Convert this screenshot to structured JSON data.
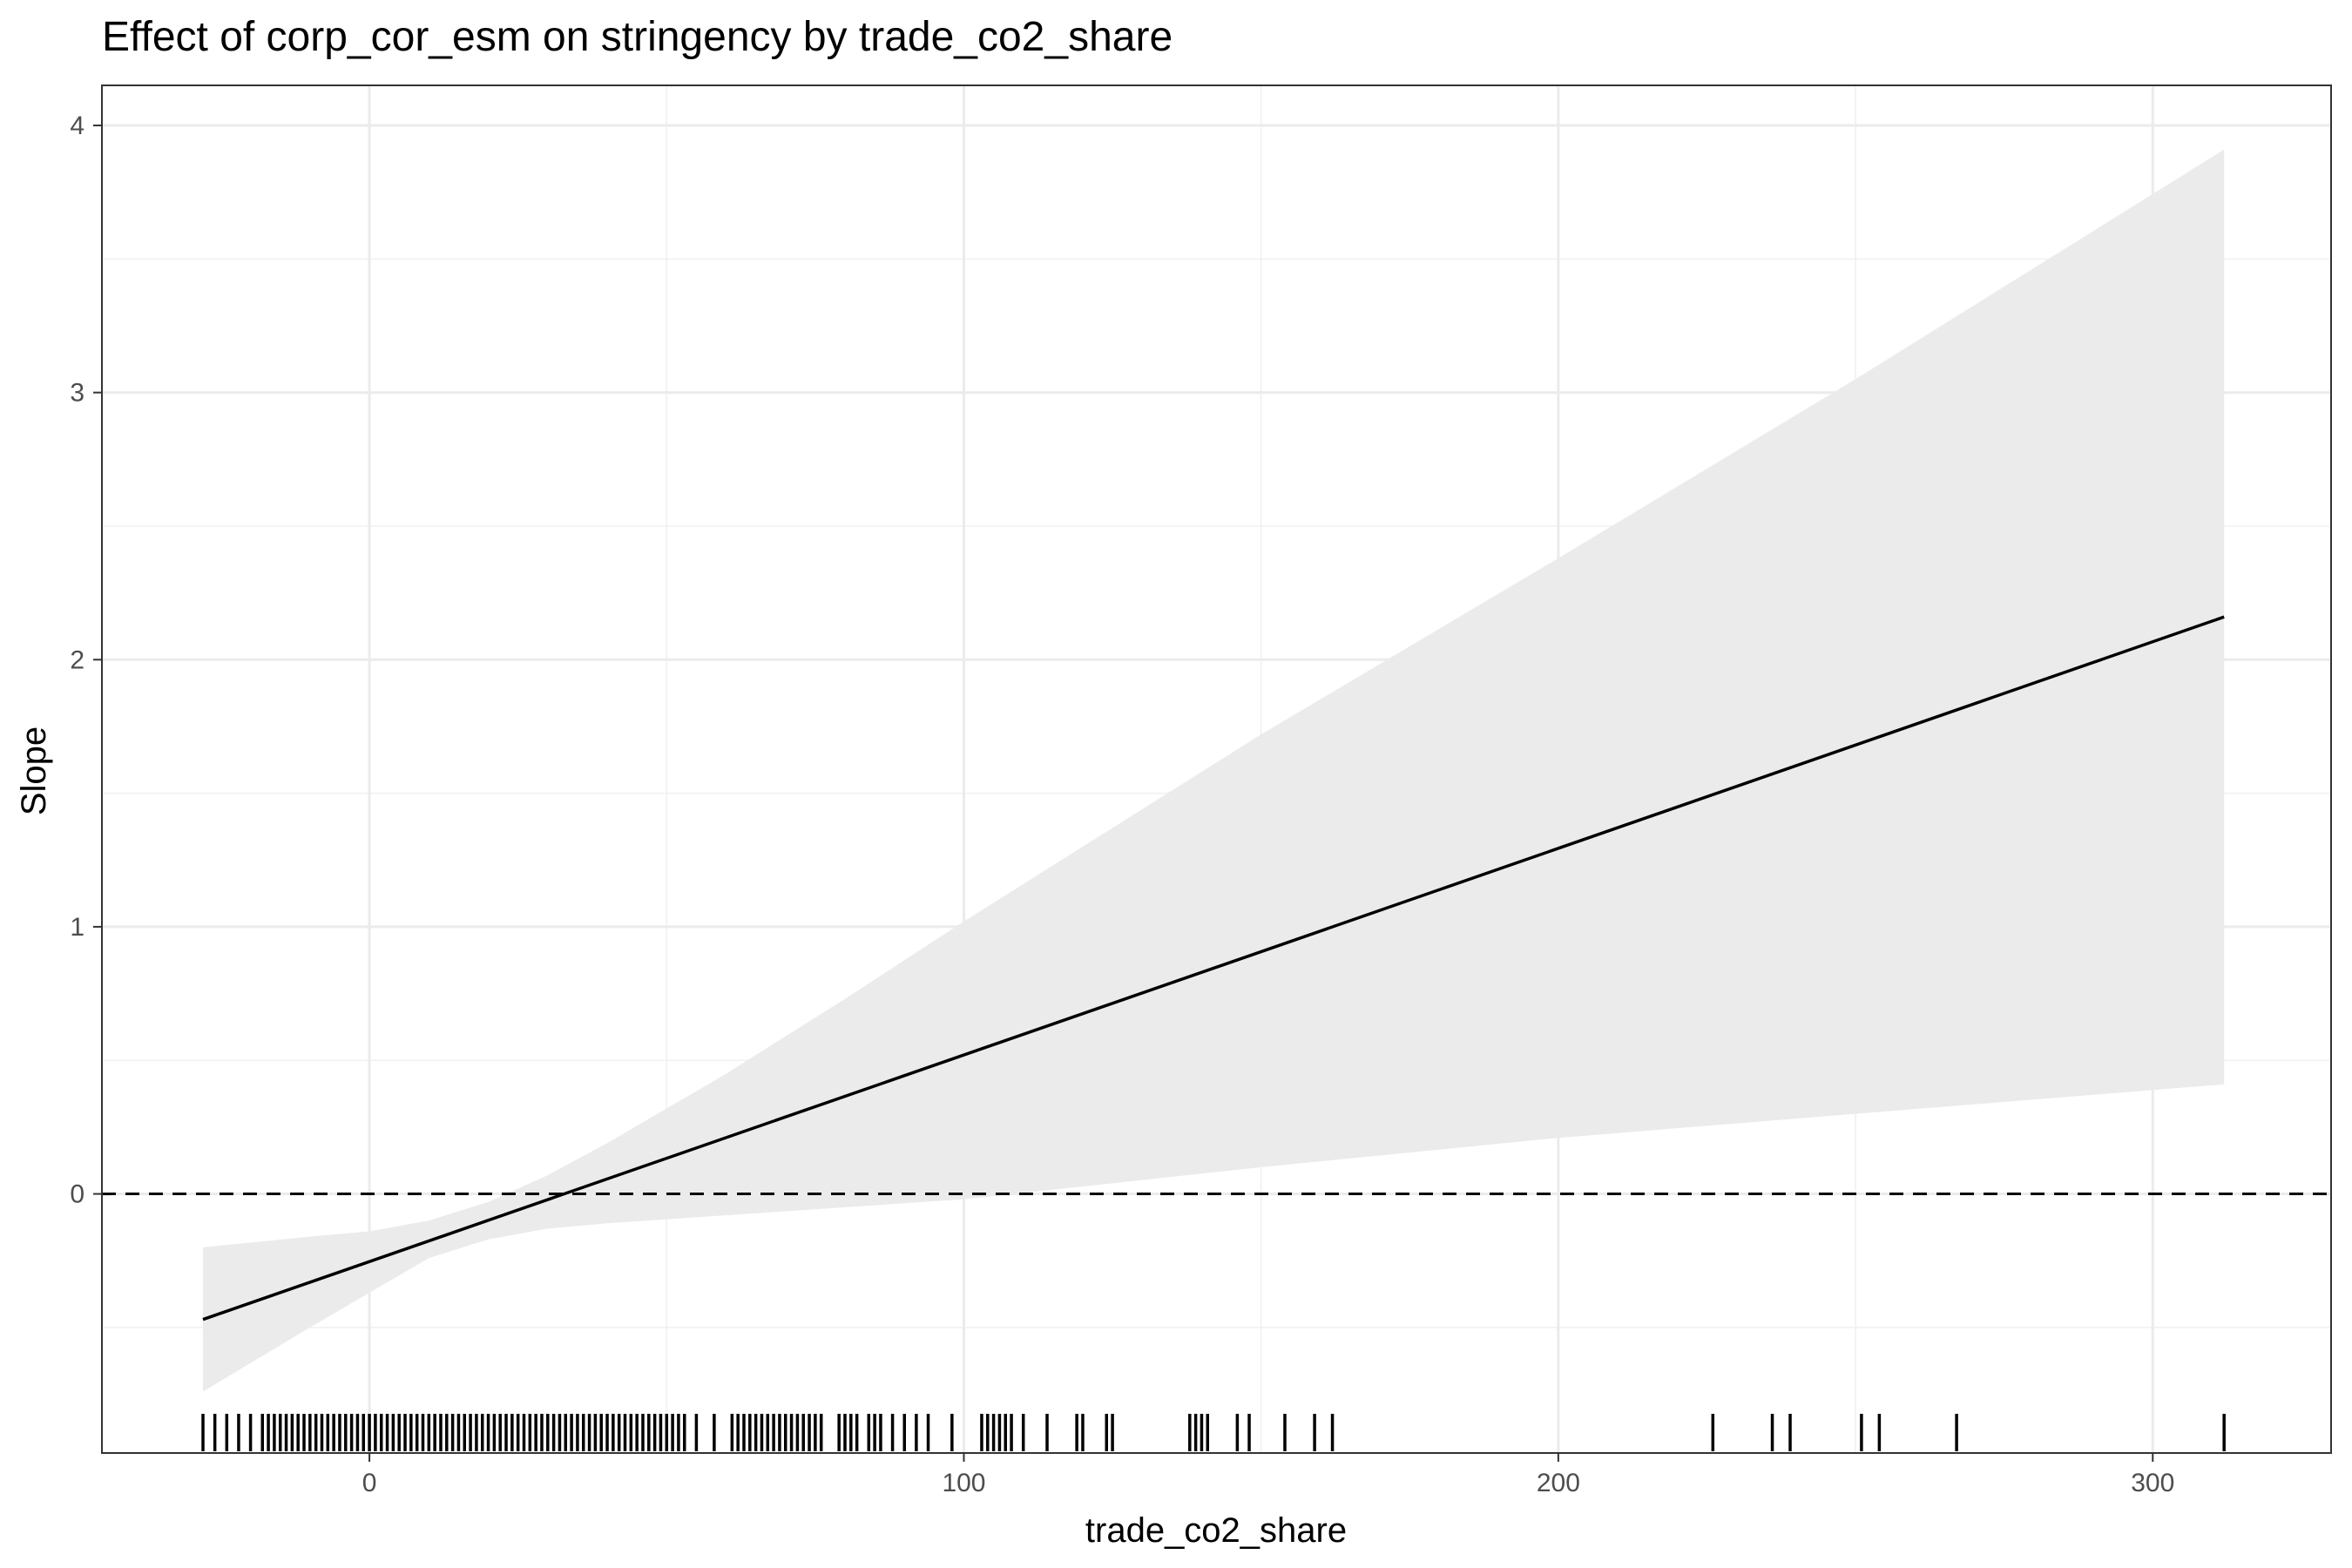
{
  "chart_data": {
    "type": "line",
    "title": "Effect of corp_cor_esm on stringency by trade_co2_share",
    "xlabel": "trade_co2_share",
    "ylabel": "Slope",
    "xlim": [
      -45,
      330
    ],
    "ylim": [
      -0.97,
      4.15
    ],
    "x_ticks": [
      0,
      100,
      200,
      300
    ],
    "y_ticks": [
      0,
      1,
      2,
      3,
      4
    ],
    "x_tick_labels": [
      "0",
      "100",
      "200",
      "300"
    ],
    "y_tick_labels": [
      "0",
      "1",
      "2",
      "3",
      "4"
    ],
    "grid": true,
    "reference_line": {
      "y": 0,
      "style": "dashed"
    },
    "series": [
      {
        "values_x": [
          -28,
          312
        ],
        "values_y": [
          -0.47,
          2.16
        ]
      }
    ],
    "confidence_band": {
      "x": [
        -28,
        -10,
        0,
        10,
        20,
        30,
        40,
        60,
        80,
        100,
        150,
        200,
        250,
        312
      ],
      "lower": [
        -0.74,
        -0.5,
        -0.37,
        -0.24,
        -0.17,
        -0.13,
        -0.11,
        -0.08,
        -0.05,
        -0.02,
        0.1,
        0.21,
        0.3,
        0.41
      ],
      "upper": [
        -0.2,
        -0.16,
        -0.14,
        -0.1,
        -0.03,
        0.07,
        0.19,
        0.45,
        0.73,
        1.02,
        1.72,
        2.38,
        3.05,
        3.91
      ]
    },
    "rug_x": [
      -28,
      -26,
      -24,
      -22,
      -20,
      -18,
      -17,
      -16,
      -15,
      -14,
      -13,
      -12,
      -11,
      -10,
      -9,
      -8,
      -7,
      -6,
      -5,
      -4,
      -3,
      -2,
      -1,
      0,
      1,
      2,
      3,
      4,
      5,
      6,
      7,
      8,
      9,
      10,
      11,
      12,
      13,
      14,
      15,
      16,
      17,
      18,
      19,
      20,
      21,
      22,
      23,
      24,
      25,
      26,
      27,
      28,
      29,
      30,
      31,
      32,
      33,
      34,
      35,
      36,
      37,
      38,
      39,
      40,
      41,
      42,
      43,
      44,
      45,
      46,
      47,
      48,
      49,
      50,
      51,
      52,
      53,
      55,
      58,
      61,
      62,
      63,
      64,
      65,
      66,
      67,
      68,
      69,
      70,
      71,
      72,
      73,
      74,
      75,
      76,
      79,
      80,
      81,
      82,
      84,
      85,
      86,
      88,
      90,
      92,
      94,
      98,
      103,
      104,
      105,
      106,
      107,
      108,
      110,
      114,
      119,
      120,
      124,
      125,
      138,
      139,
      140,
      141,
      146,
      148,
      154,
      159,
      162,
      226,
      236,
      239,
      251,
      254,
      267,
      312
    ]
  }
}
